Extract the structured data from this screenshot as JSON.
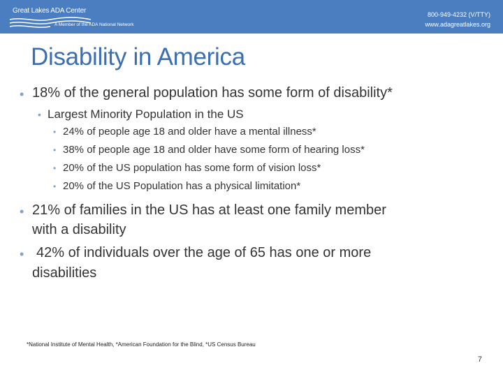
{
  "header": {
    "logo_name": "Great Lakes ADA Center",
    "logo_tagline": "A Member of the ADA National Network",
    "phone": "800-949-4232 (V/TTY)",
    "website": "www.adagreatlakes.org"
  },
  "slide": {
    "title": "Disability in America",
    "bullets": [
      "18% of the general population has some form of disability*",
      "Largest Minority Population in the US",
      "24% of people age 18 and older have a mental illness*",
      "38% of people age 18 and older have some form of hearing loss*",
      "20% of the US population has some form of vision loss*",
      "20% of the US Population has a physical limitation*",
      "21% of families in the US has at least one family member",
      "with a disability",
      "42% of individuals over the age of 65 has one or more",
      "disabilities"
    ],
    "footnote": "*National Institute of Mental Health, *American Foundation for the Blind, *US Census Bureau",
    "page_number": "7"
  },
  "colors": {
    "header_bg": "#4a7ec0",
    "title": "#3b6fb1",
    "bullet": "#7ea3cf"
  }
}
